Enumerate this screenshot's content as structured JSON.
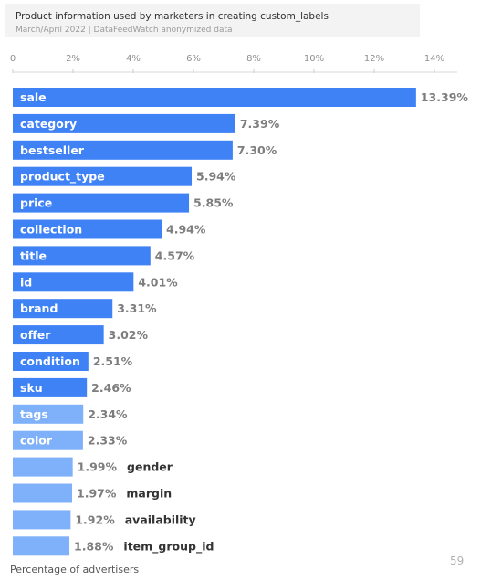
{
  "title": "Product information used by marketers in creating custom_labels",
  "subtitle": "March/April 2022 | DataFeedWatch anonymized data",
  "xlabel": "Percentage of advertisers",
  "page_number": "59",
  "colors": {
    "bar_dark": "#3f82f5",
    "bar_light": "#7fb0fa"
  },
  "chart_data": {
    "type": "bar",
    "orientation": "horizontal",
    "title": "Product information used by marketers in creating custom_labels",
    "subtitle": "March/April 2022 | DataFeedWatch anonymized data",
    "xlabel": "Percentage of advertisers",
    "xlim": [
      0,
      14
    ],
    "x_ticks": [
      "0",
      "2%",
      "4%",
      "6%",
      "8%",
      "10%",
      "12%",
      "14%"
    ],
    "grid": false,
    "categories": [
      "sale",
      "category",
      "bestseller",
      "product_type",
      "price",
      "collection",
      "title",
      "id",
      "brand",
      "offer",
      "condition",
      "sku",
      "tags",
      "color",
      "gender",
      "margin",
      "availability",
      "item_group_id"
    ],
    "values": [
      13.39,
      7.39,
      7.3,
      5.94,
      5.85,
      4.94,
      4.57,
      4.01,
      3.31,
      3.02,
      2.51,
      2.46,
      2.34,
      2.33,
      1.99,
      1.97,
      1.92,
      1.88
    ],
    "value_labels": [
      "13.39%",
      "7.39%",
      "7.30%",
      "5.94%",
      "5.85%",
      "4.94%",
      "4.57%",
      "4.01%",
      "3.31%",
      "3.02%",
      "2.51%",
      "2.46%",
      "2.34%",
      "2.33%",
      "1.99%",
      "1.97%",
      "1.92%",
      "1.88%"
    ]
  }
}
